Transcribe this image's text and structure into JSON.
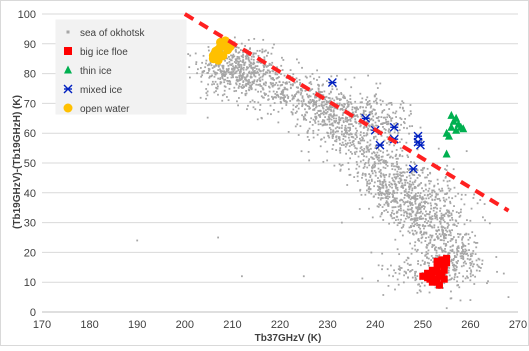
{
  "chart_data": {
    "type": "scatter",
    "title": "",
    "xlabel": "Tb37GHzV (K)",
    "ylabel": "(Tb19GHzV)-(Tb19GHzH) (K)",
    "xlim": [
      170,
      270
    ],
    "ylim": [
      0,
      100
    ],
    "x_ticks": [
      170,
      180,
      190,
      200,
      210,
      220,
      230,
      240,
      250,
      260,
      270
    ],
    "y_ticks": [
      0,
      10,
      20,
      30,
      40,
      50,
      60,
      70,
      80,
      90,
      100
    ],
    "grid": "horizontal",
    "legend_position": "top-left",
    "series": [
      {
        "name": "sea of okhotsk",
        "marker": "small-dot",
        "color": "#a6a6a6",
        "points_description": "dense cloud of several thousand points spanning x 205-262, y 5-90, concentrated near (208,84)-(215,78) and along a band down to (253,25); plus a separate cluster near (250-262, 10-20)",
        "clusters": [
          {
            "x_center": 211,
            "y_center": 82,
            "x_spread": 4,
            "y_spread": 4,
            "count": 400
          },
          {
            "x_start": 210,
            "y_start": 80,
            "x_end": 245,
            "y_end": 62,
            "spread": 4,
            "count": 700
          },
          {
            "x_start": 225,
            "y_start": 72,
            "x_end": 256,
            "y_end": 30,
            "spread": 4,
            "count": 900
          },
          {
            "x_start": 240,
            "y_start": 45,
            "x_end": 258,
            "y_end": 18,
            "spread": 3,
            "count": 500
          },
          {
            "x_center": 254,
            "y_center": 15,
            "x_spread": 5,
            "y_spread": 4,
            "count": 250
          },
          {
            "x_center": 246,
            "y_center": 12,
            "x_spread": 2,
            "y_spread": 2,
            "count": 20
          }
        ]
      },
      {
        "name": "big ice floe",
        "marker": "square",
        "color": "#ff0000",
        "x": [
          250,
          251,
          252,
          252.5,
          253,
          253.5,
          254,
          254.5,
          251,
          252,
          253,
          254,
          252.5,
          253.5,
          254.5,
          253,
          254,
          255,
          254.5,
          255,
          253,
          252,
          251.5,
          250.5
        ],
        "y": [
          12,
          11.5,
          12.5,
          11,
          10,
          12,
          13,
          14,
          13,
          14,
          15,
          16,
          10.5,
          9,
          11,
          17,
          17.5,
          18,
          15.5,
          16.5,
          13.5,
          10,
          11,
          12
        ]
      },
      {
        "name": "thin ice",
        "marker": "triangle",
        "color": "#00b050",
        "x": [
          255,
          256,
          256.5,
          257,
          257.5,
          258,
          256,
          255.5,
          257,
          258.5,
          255
        ],
        "y": [
          60,
          62,
          64,
          65,
          63,
          62,
          66,
          59,
          61,
          61.5,
          53
        ]
      },
      {
        "name": "mixed ice",
        "marker": "asterisk",
        "color": "#0020c0",
        "x": [
          231,
          238,
          240,
          241,
          244,
          244,
          249,
          249.5,
          249,
          248
        ],
        "y": [
          77,
          65,
          61,
          56,
          62,
          58,
          59,
          56,
          57,
          48
        ]
      },
      {
        "name": "open water",
        "marker": "circle",
        "color": "#ffc000",
        "x": [
          206,
          206.5,
          207,
          207.5,
          208,
          208.5,
          209,
          207,
          208,
          206.5,
          207.5,
          208.5,
          209.5,
          206
        ],
        "y": [
          85,
          86.5,
          88,
          89,
          90,
          89.5,
          88,
          84.5,
          86,
          87.5,
          90.5,
          91,
          89,
          86
        ]
      }
    ],
    "reference_line": {
      "style": "dashed",
      "color": "#ff2020",
      "x": [
        200,
        268
      ],
      "y": [
        100,
        34
      ]
    }
  }
}
